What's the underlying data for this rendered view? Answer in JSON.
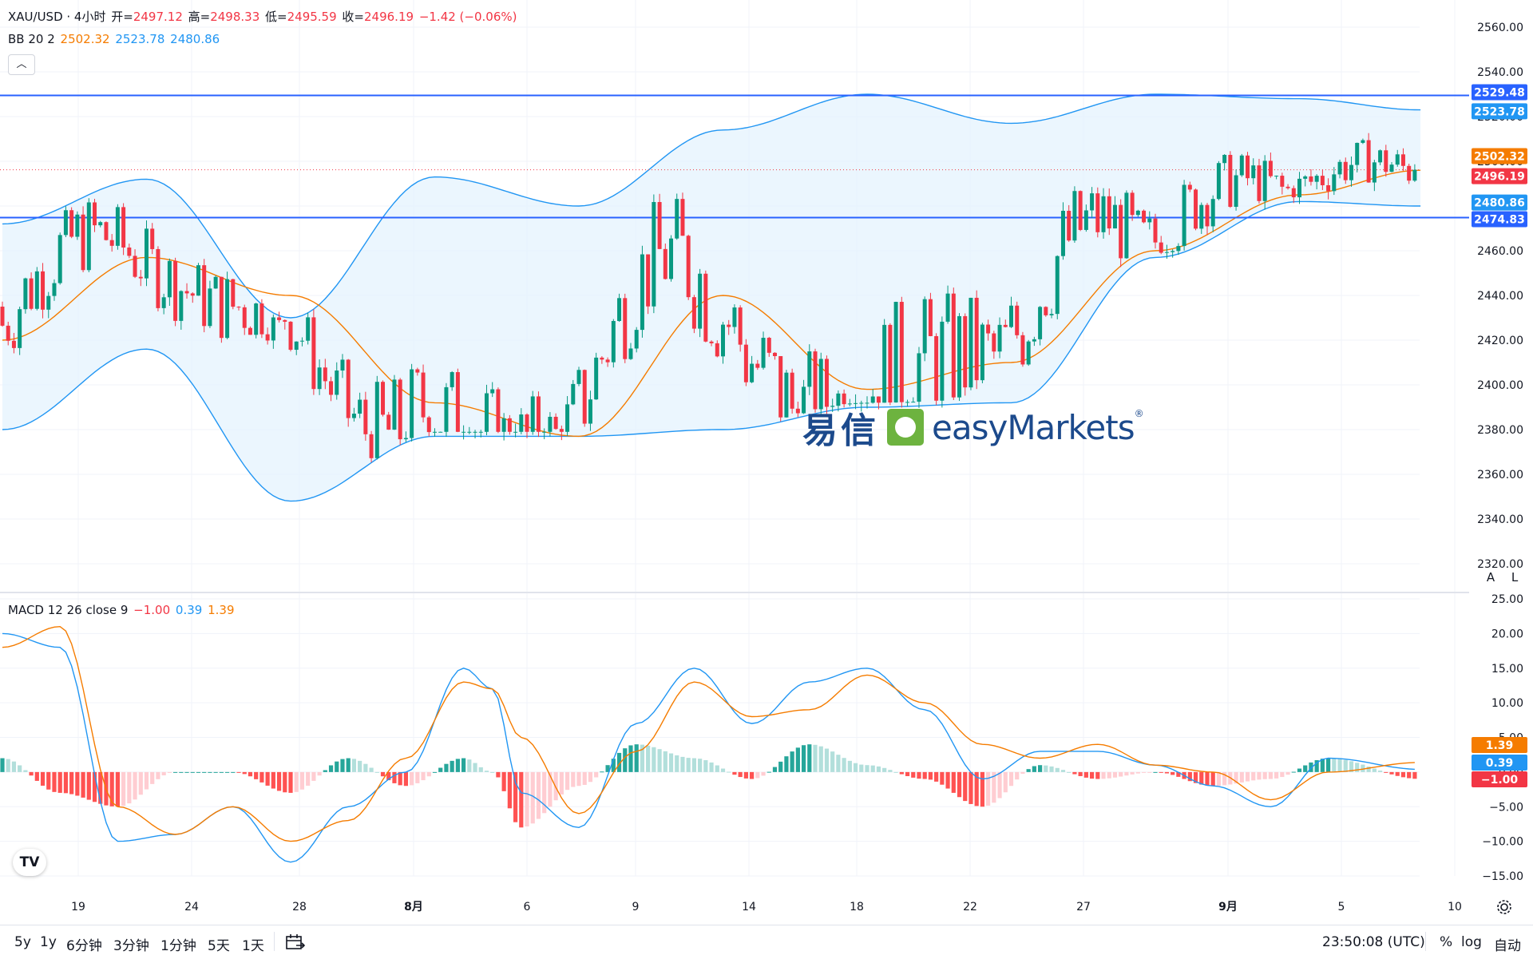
{
  "header": {
    "symbol": "XAU/USD · 4小时",
    "open_label": "开=",
    "open": "2497.12",
    "high_label": "高=",
    "high": "2498.33",
    "low_label": "低=",
    "low": "2495.59",
    "close_label": "收=",
    "close": "2496.19",
    "change": "−1.42 (−0.06%)",
    "bb_label": "BB 20 2",
    "bb_basis": "2502.32",
    "bb_upper": "2523.78",
    "bb_lower": "2480.86",
    "macd_label": "MACD 12 26 close 9",
    "macd_hist": "−1.00",
    "macd_line": "0.39",
    "macd_signal": "1.39"
  },
  "collapse_icon": "chevron-up-icon",
  "axis_buttons": {
    "auto": "A",
    "log": "L"
  },
  "price_axis_ticks": [
    "2560.00",
    "2540.00",
    "2520.00",
    "2500.00",
    "2480.00",
    "2460.00",
    "2440.00",
    "2420.00",
    "2400.00",
    "2380.00",
    "2360.00",
    "2340.00",
    "2320.00"
  ],
  "macd_axis_ticks": [
    "25.00",
    "20.00",
    "15.00",
    "10.00",
    "5.00",
    "0.00",
    "−5.00",
    "−10.00",
    "−15.00"
  ],
  "time_axis_labels": [
    "19",
    "24",
    "28",
    "8月",
    "6",
    "9",
    "14",
    "18",
    "22",
    "27",
    "9月",
    "5",
    "10"
  ],
  "price_labels": {
    "resistance": "2529.48",
    "upper": "2523.78",
    "basis": "2502.32",
    "last": "2496.19",
    "lower": "2480.86",
    "support": "2474.83"
  },
  "macd_labels": {
    "signal": "1.39",
    "macd": "0.39",
    "hist": "−1.00"
  },
  "watermark": {
    "cn": "易信",
    "en": "easyMarkets",
    "reg": "®"
  },
  "bottom_bar": {
    "timeframes": [
      "5y",
      "1y",
      "6分钟",
      "3分钟",
      "1分钟",
      "5天",
      "1天"
    ],
    "time": "23:50:08 (UTC)",
    "percent": "%",
    "log": "log",
    "auto": "自动"
  },
  "colors": {
    "up": "#089981",
    "down": "#f23645",
    "basis": "#f57c00",
    "band": "#2196f3",
    "band_fill": "#e3f2fd",
    "hline": "#2962ff",
    "macd": "#2196f3",
    "signal": "#f57c00",
    "hist_up_strong": "#26a69a",
    "hist_up_weak": "#b2dfdb",
    "hist_down_strong": "#ff5252",
    "hist_down_weak": "#ffcdd2"
  },
  "chart_data": {
    "type": "candlestick",
    "title": "XAU/USD · 4小时",
    "y_range": [
      2320,
      2560
    ],
    "horizontal_lines": [
      2529.48,
      2474.83
    ],
    "bb_anchors": {
      "x": [
        0,
        25,
        50,
        75,
        100,
        125,
        150,
        175,
        200,
        225,
        246
      ],
      "basis": [
        2420,
        2457,
        2440,
        2392,
        2377,
        2440,
        2398,
        2410,
        2460,
        2485,
        2496
      ],
      "upper": [
        2472,
        2492,
        2430,
        2493,
        2480,
        2514,
        2530,
        2517,
        2530,
        2528,
        2523
      ],
      "lower": [
        2380,
        2416,
        2348,
        2377,
        2377,
        2380,
        2390,
        2392,
        2457,
        2482,
        2480
      ]
    },
    "candle_count": 246,
    "macd_range": [
      -15,
      25
    ],
    "macd_anchors": {
      "x": [
        0,
        10,
        20,
        30,
        40,
        50,
        60,
        70,
        80,
        85,
        90,
        100,
        110,
        120,
        130,
        140,
        150,
        160,
        170,
        180,
        190,
        200,
        210,
        220,
        230,
        246
      ],
      "macd": [
        20,
        18,
        -10,
        -9,
        -5,
        -13,
        -5,
        0,
        15,
        12,
        -3,
        -8,
        7,
        15,
        7,
        13,
        15,
        9,
        -1,
        3,
        3,
        1,
        -2,
        -5,
        2,
        0.39
      ],
      "signal": [
        18,
        21,
        -5,
        -9,
        -5,
        -10,
        -7,
        2,
        13,
        12,
        5,
        -6,
        3,
        13,
        8,
        9,
        14,
        10,
        4,
        2,
        4,
        1,
        0,
        -4,
        0,
        1.39
      ]
    }
  }
}
